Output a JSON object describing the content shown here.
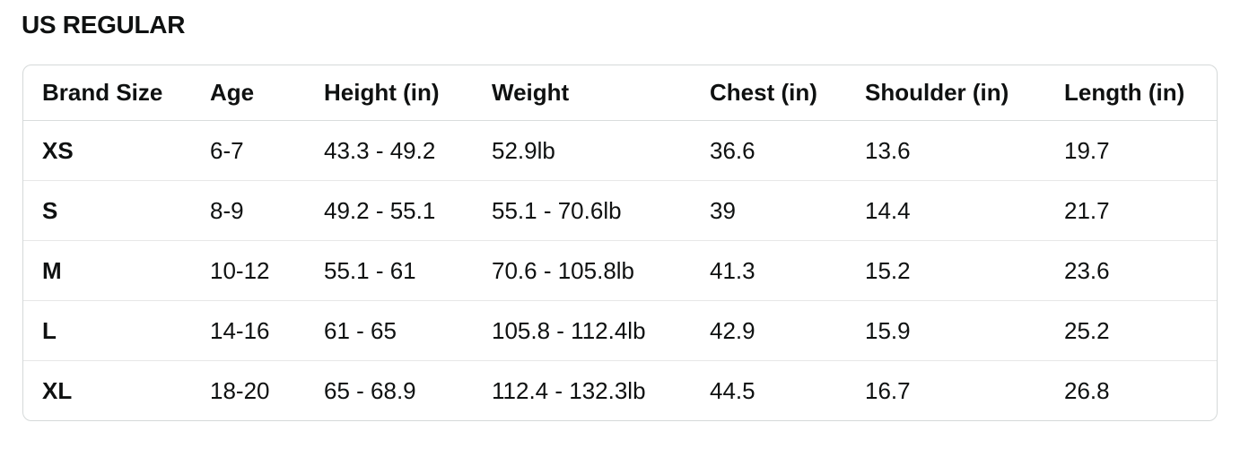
{
  "title": "US REGULAR",
  "size_chart": {
    "columns": [
      "Brand Size",
      "Age",
      "Height (in)",
      "Weight",
      "Chest (in)",
      "Shoulder (in)",
      "Length (in)"
    ],
    "rows": [
      {
        "brand_size": "XS",
        "age": "6-7",
        "height": "43.3 - 49.2",
        "weight": "52.9lb",
        "chest": "36.6",
        "shoulder": "13.6",
        "length": "19.7"
      },
      {
        "brand_size": "S",
        "age": "8-9",
        "height": "49.2 - 55.1",
        "weight": "55.1 - 70.6lb",
        "chest": "39",
        "shoulder": "14.4",
        "length": "21.7"
      },
      {
        "brand_size": "M",
        "age": "10-12",
        "height": "55.1 - 61",
        "weight": "70.6 - 105.8lb",
        "chest": "41.3",
        "shoulder": "15.2",
        "length": "23.6"
      },
      {
        "brand_size": "L",
        "age": "14-16",
        "height": "61 - 65",
        "weight": "105.8 - 112.4lb",
        "chest": "42.9",
        "shoulder": "15.9",
        "length": "25.2"
      },
      {
        "brand_size": "XL",
        "age": "18-20",
        "height": "65 - 68.9",
        "weight": "112.4 - 132.3lb",
        "chest": "44.5",
        "shoulder": "16.7",
        "length": "26.8"
      }
    ],
    "colors": {
      "text": "#0F1111",
      "card_border": "#D5D9D9",
      "row_divider": "#E7E7E7",
      "background": "#FFFFFF"
    }
  }
}
